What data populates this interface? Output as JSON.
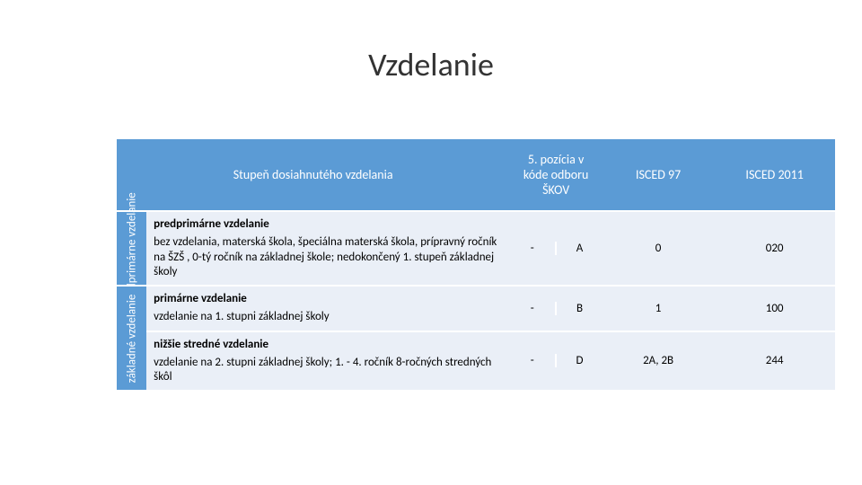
{
  "title": "Vzdelanie",
  "header": {
    "col1": "Stupeň dosiahnutého vzdelania",
    "col2": "5. pozícia v kóde odboru ŠKOV",
    "col3": "ISCED 97",
    "col4": "ISCED 2011"
  },
  "group1": {
    "sticker": "predprimárne vzdelanie",
    "row1": {
      "bold": "predprimárne vzdelanie",
      "text": "bez vzdelania, materská škola, špeciálna materská škola, prípravný ročník na ŠZŠ , 0-tý ročník na základnej škole; nedokončený 1. stupeň základnej školy",
      "c5a": "-",
      "c5b": "A",
      "isced97": "0",
      "isced2011": "020"
    }
  },
  "group2": {
    "sticker": "základné vzdelanie",
    "row1": {
      "bold": "primárne vzdelanie",
      "text": "vzdelanie na 1. stupni základnej školy",
      "c5a": "-",
      "c5b": "B",
      "isced97": "1",
      "isced2011": "100"
    },
    "row2": {
      "bold": "nižšie stredné vzdelanie",
      "text": "vzdelanie na 2. stupni základnej školy; 1. - 4. ročník 8-ročných stredných škôl",
      "c5a": "-",
      "c5b": "D",
      "isced97": "2A, 2B",
      "isced2011": "244"
    }
  },
  "colors": {
    "header_bg": "#5b9bd5",
    "row_bg": "#eaeff7",
    "text": "#000000",
    "header_text": "#ffffff"
  }
}
